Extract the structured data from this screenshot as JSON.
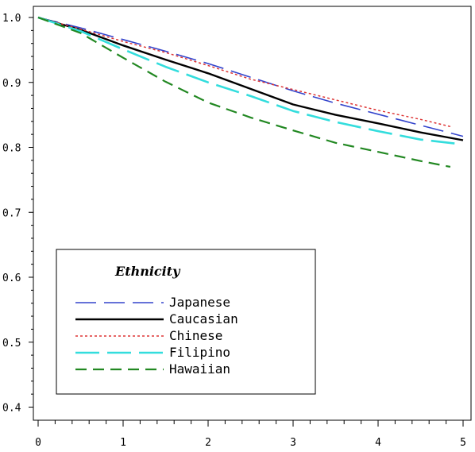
{
  "chart_data": {
    "type": "line",
    "title": "",
    "xlabel": "",
    "ylabel": "",
    "xlim": [
      0,
      5
    ],
    "ylim": [
      0.4,
      1.0
    ],
    "x_ticks": [
      "0",
      "1",
      "2",
      "3",
      "4",
      "5"
    ],
    "y_ticks": [
      "0.4",
      "0.5",
      "0.6",
      "0.7",
      "0.8",
      "0.9",
      "1.0"
    ],
    "grid": false,
    "legend": {
      "title": "Ethnicity",
      "position": "bottom-left"
    },
    "series": [
      {
        "name": "Japanese",
        "color": "#3344cc",
        "dash": "long-dash",
        "x": [
          0,
          0.5,
          1,
          1.5,
          2,
          2.5,
          3,
          3.5,
          4,
          4.5,
          5
        ],
        "y": [
          1.0,
          0.984,
          0.966,
          0.948,
          0.929,
          0.908,
          0.887,
          0.868,
          0.851,
          0.834,
          0.817
        ]
      },
      {
        "name": "Caucasian",
        "color": "#000000",
        "dash": "solid",
        "x": [
          0,
          0.5,
          1,
          1.5,
          2,
          2.5,
          3,
          3.5,
          4,
          4.5,
          5
        ],
        "y": [
          1.0,
          0.981,
          0.957,
          0.935,
          0.914,
          0.89,
          0.866,
          0.85,
          0.837,
          0.823,
          0.811
        ]
      },
      {
        "name": "Chinese",
        "color": "#dd3333",
        "dash": "dotted",
        "x": [
          0,
          0.5,
          1,
          1.5,
          2,
          2.5,
          3,
          3.5,
          4,
          4.5,
          4.85
        ],
        "y": [
          1.0,
          0.982,
          0.963,
          0.946,
          0.926,
          0.905,
          0.889,
          0.873,
          0.857,
          0.843,
          0.832
        ]
      },
      {
        "name": "Filipino",
        "color": "#33dddd",
        "dash": "long-dash-wide",
        "x": [
          0,
          0.5,
          1,
          1.5,
          2,
          2.5,
          3,
          3.5,
          4,
          4.5,
          4.9
        ],
        "y": [
          1.0,
          0.979,
          0.951,
          0.924,
          0.9,
          0.879,
          0.856,
          0.839,
          0.825,
          0.812,
          0.806
        ]
      },
      {
        "name": "Hawaiian",
        "color": "#228822",
        "dash": "dash",
        "x": [
          0,
          0.5,
          1,
          1.5,
          2,
          2.5,
          3,
          3.5,
          4,
          4.5,
          4.85
        ],
        "y": [
          1.0,
          0.976,
          0.938,
          0.901,
          0.869,
          0.846,
          0.826,
          0.807,
          0.793,
          0.779,
          0.77
        ]
      }
    ]
  }
}
